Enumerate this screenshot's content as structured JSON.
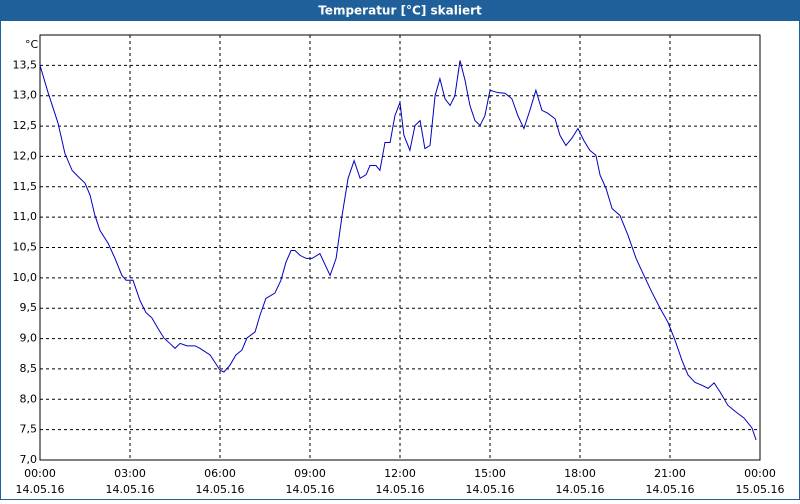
{
  "chart_data": {
    "type": "line",
    "title": "Temperatur [°C] skaliert",
    "y_label": "°C",
    "x": [
      0,
      0.27,
      0.6,
      0.83,
      1.07,
      1.27,
      1.5,
      1.67,
      1.83,
      2,
      2.27,
      2.5,
      2.73,
      2.87,
      3.1,
      3.33,
      3.53,
      3.73,
      3.93,
      4.13,
      4.33,
      4.5,
      4.67,
      4.9,
      5.17,
      5.33,
      5.67,
      5.83,
      6,
      6.13,
      6.33,
      6.53,
      6.73,
      6.9,
      7.17,
      7.33,
      7.53,
      7.83,
      8.03,
      8.2,
      8.37,
      8.5,
      8.67,
      8.87,
      9.07,
      9.33,
      9.67,
      9.87,
      10.07,
      10.27,
      10.47,
      10.67,
      10.87,
      11,
      11.2,
      11.33,
      11.5,
      11.67,
      11.83,
      12,
      12.13,
      12.33,
      12.5,
      12.67,
      12.83,
      13,
      13.17,
      13.33,
      13.5,
      13.67,
      13.83,
      14,
      14.17,
      14.33,
      14.5,
      14.67,
      14.83,
      15,
      15.27,
      15.5,
      15.73,
      15.93,
      16.13,
      16.33,
      16.53,
      16.73,
      16.93,
      17.17,
      17.33,
      17.53,
      17.73,
      17.93,
      18.13,
      18.33,
      18.53,
      18.67,
      18.87,
      19.07,
      19.33,
      19.6,
      19.87,
      20.13,
      20.4,
      20.67,
      20.93,
      21.17,
      21.4,
      21.6,
      21.83,
      22.07,
      22.27,
      22.47,
      22.67,
      22.93,
      23.2,
      23.47,
      23.73,
      23.87
    ],
    "series": [
      {
        "name": "Temperatur",
        "color": "#0000c0",
        "values": [
          13.5,
          13.05,
          12.55,
          12.05,
          11.77,
          11.67,
          11.56,
          11.36,
          11.03,
          10.78,
          10.57,
          10.32,
          10.04,
          9.96,
          9.96,
          9.63,
          9.43,
          9.34,
          9.17,
          9.01,
          8.92,
          8.84,
          8.92,
          8.88,
          8.88,
          8.84,
          8.73,
          8.61,
          8.48,
          8.45,
          8.56,
          8.73,
          8.81,
          9.01,
          9.11,
          9.38,
          9.66,
          9.75,
          9.96,
          10.26,
          10.45,
          10.45,
          10.37,
          10.32,
          10.32,
          10.4,
          10.04,
          10.32,
          11.03,
          11.64,
          11.93,
          11.64,
          11.7,
          11.85,
          11.85,
          11.77,
          12.23,
          12.23,
          12.67,
          12.89,
          12.35,
          12.1,
          12.51,
          12.59,
          12.13,
          12.18,
          13.0,
          13.28,
          12.95,
          12.84,
          13.0,
          13.58,
          13.25,
          12.84,
          12.59,
          12.51,
          12.67,
          13.09,
          13.05,
          13.04,
          12.95,
          12.67,
          12.46,
          12.76,
          13.09,
          12.76,
          12.71,
          12.62,
          12.35,
          12.18,
          12.3,
          12.46,
          12.26,
          12.1,
          12.02,
          11.69,
          11.47,
          11.14,
          11.03,
          10.7,
          10.32,
          10.04,
          9.76,
          9.5,
          9.27,
          8.97,
          8.64,
          8.4,
          8.28,
          8.23,
          8.18,
          8.27,
          8.12,
          7.9,
          7.79,
          7.69,
          7.53,
          7.33
        ]
      }
    ],
    "xlim": [
      0,
      24
    ],
    "xticks": [
      {
        "value": 0,
        "label": "00:00"
      },
      {
        "value": 3,
        "label": "03:00"
      },
      {
        "value": 6,
        "label": "06:00"
      },
      {
        "value": 9,
        "label": "09:00"
      },
      {
        "value": 12,
        "label": "12:00"
      },
      {
        "value": 15,
        "label": "15:00"
      },
      {
        "value": 18,
        "label": "18:00"
      },
      {
        "value": 21,
        "label": "21:00"
      },
      {
        "value": 24,
        "label": "00:00"
      }
    ],
    "x_tick_dates": [
      "14.05.16",
      "14.05.16",
      "14.05.16",
      "14.05.16",
      "14.05.16",
      "14.05.16",
      "14.05.16",
      "14.05.16",
      "15.05.16"
    ],
    "ylim": [
      7,
      14
    ],
    "yticks": [
      {
        "value": 7,
        "label": "7,0"
      },
      {
        "value": 7.5,
        "label": "7,5"
      },
      {
        "value": 8,
        "label": "8,0"
      },
      {
        "value": 8.5,
        "label": "8,5"
      },
      {
        "value": 9,
        "label": "9,0"
      },
      {
        "value": 9.5,
        "label": "9,5"
      },
      {
        "value": 10,
        "label": "10,0"
      },
      {
        "value": 10.5,
        "label": "10,5"
      },
      {
        "value": 11,
        "label": "11,0"
      },
      {
        "value": 11.5,
        "label": "11,5"
      },
      {
        "value": 12,
        "label": "12,0"
      },
      {
        "value": 12.5,
        "label": "12,5"
      },
      {
        "value": 13,
        "label": "13,0"
      },
      {
        "value": 13.5,
        "label": "13,5"
      }
    ],
    "grid": true
  }
}
